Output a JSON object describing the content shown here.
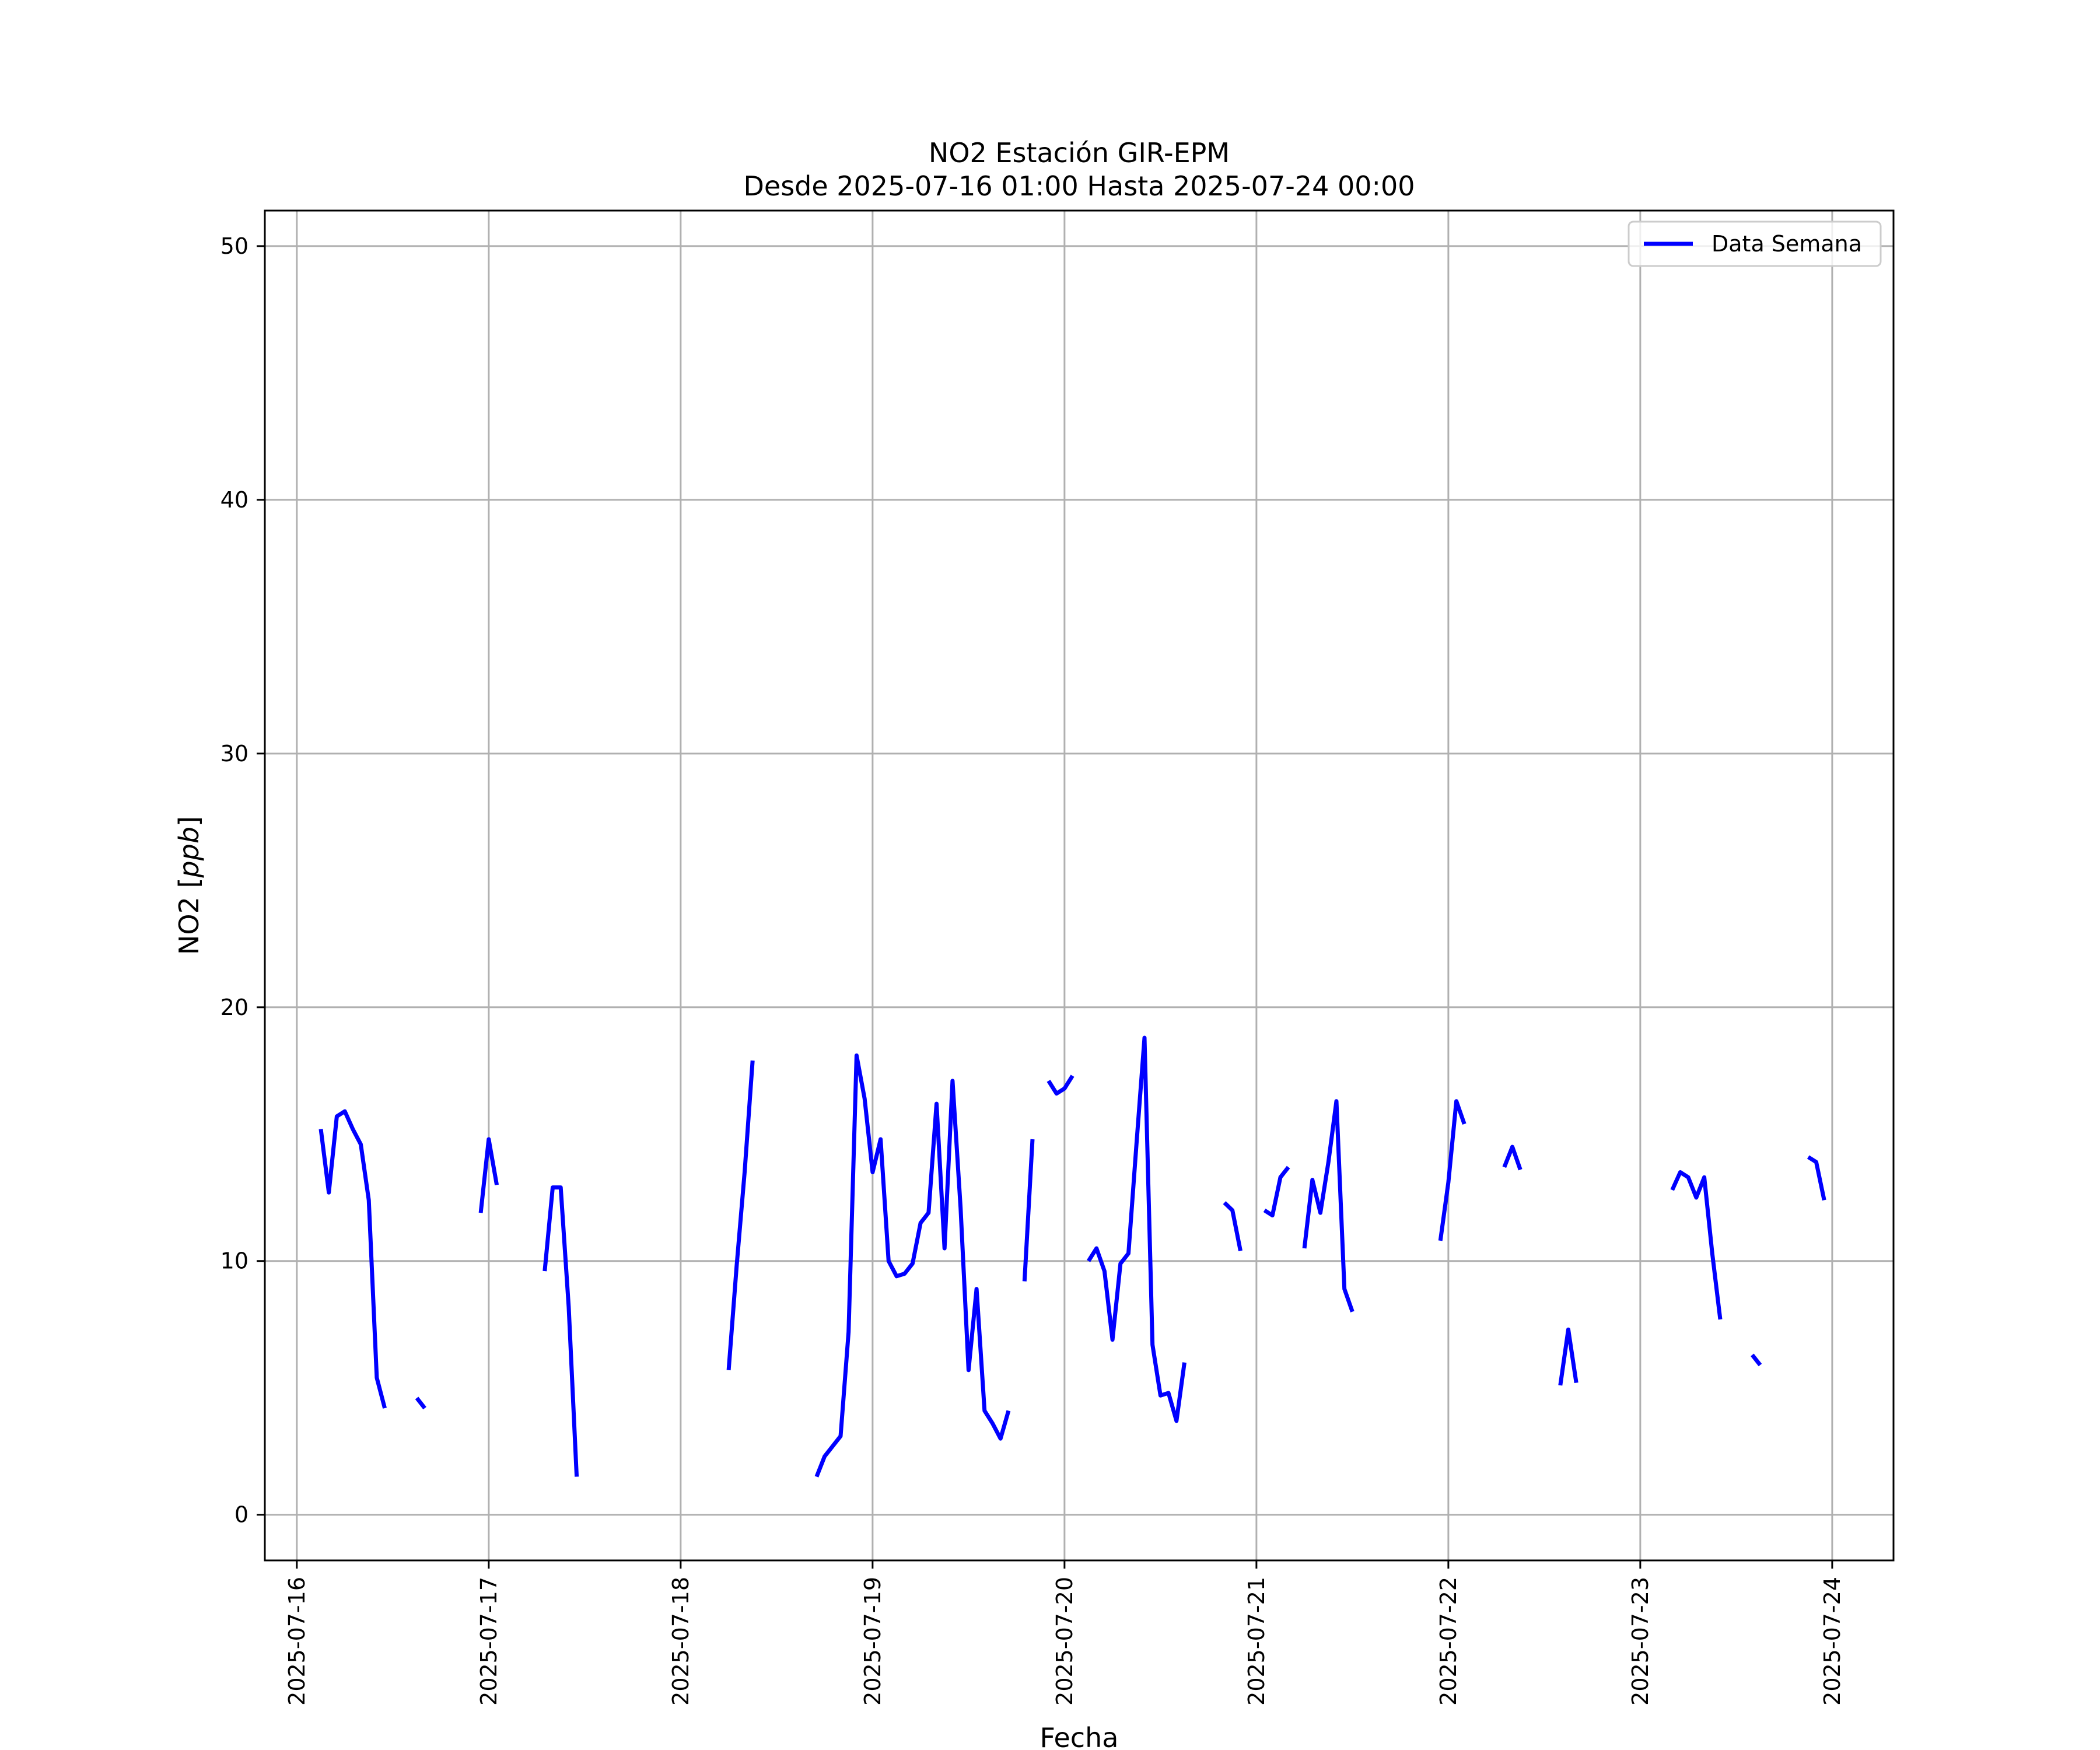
{
  "chart_data": {
    "type": "line",
    "title": "NO2 Estación GIR-EPM",
    "subtitle": "Desde 2025-07-16 01:00 Hasta 2025-07-24 00:00",
    "xlabel": "Fecha",
    "ylabel_main": "NO2 [",
    "ylabel_italic": "ppb",
    "ylabel_end": "]",
    "x_type": "date",
    "xlim": [
      "2025-07-15T20:00",
      "2025-07-24T07:40"
    ],
    "ylim": [
      -1.8,
      51.4
    ],
    "x_ticks": [
      "2025-07-16",
      "2025-07-17",
      "2025-07-18",
      "2025-07-19",
      "2025-07-20",
      "2025-07-21",
      "2025-07-22",
      "2025-07-23",
      "2025-07-24"
    ],
    "y_ticks": [
      0,
      10,
      20,
      30,
      40,
      50
    ],
    "grid": true,
    "legend_position": "top-right",
    "color": "#0000ff",
    "series": [
      {
        "name": "Data Semana",
        "segments": [
          [
            [
              "2025-07-16T03:00",
              15.2
            ],
            [
              "2025-07-16T04:00",
              12.7
            ],
            [
              "2025-07-16T05:00",
              15.7
            ],
            [
              "2025-07-16T06:00",
              15.9
            ],
            [
              "2025-07-16T07:00",
              15.2
            ],
            [
              "2025-07-16T08:00",
              14.6
            ],
            [
              "2025-07-16T09:00",
              12.4
            ],
            [
              "2025-07-16T10:00",
              5.4
            ],
            [
              "2025-07-16T11:00",
              4.2
            ]
          ],
          [
            [
              "2025-07-16T15:00",
              4.6
            ],
            [
              "2025-07-16T16:00",
              4.2
            ]
          ],
          [
            [
              "2025-07-16T23:00",
              11.9
            ],
            [
              "2025-07-17T00:00",
              14.8
            ],
            [
              "2025-07-17T01:00",
              13.0
            ]
          ],
          [
            [
              "2025-07-17T07:00",
              9.6
            ],
            [
              "2025-07-17T08:00",
              12.9
            ],
            [
              "2025-07-17T09:00",
              12.9
            ],
            [
              "2025-07-17T10:00",
              8.2
            ],
            [
              "2025-07-17T11:00",
              1.5
            ]
          ],
          [
            [
              "2025-07-18T06:00",
              5.7
            ],
            [
              "2025-07-18T07:00",
              9.8
            ],
            [
              "2025-07-18T08:00",
              13.5
            ],
            [
              "2025-07-18T09:00",
              17.9
            ]
          ],
          [
            [
              "2025-07-18T17:00",
              1.5
            ],
            [
              "2025-07-18T18:00",
              2.3
            ],
            [
              "2025-07-18T19:00",
              2.7
            ],
            [
              "2025-07-18T20:00",
              3.1
            ],
            [
              "2025-07-18T21:00",
              7.2
            ],
            [
              "2025-07-18T22:00",
              18.1
            ],
            [
              "2025-07-18T23:00",
              16.4
            ],
            [
              "2025-07-19T00:00",
              13.5
            ],
            [
              "2025-07-19T01:00",
              14.8
            ],
            [
              "2025-07-19T02:00",
              10.0
            ],
            [
              "2025-07-19T03:00",
              9.4
            ],
            [
              "2025-07-19T04:00",
              9.5
            ],
            [
              "2025-07-19T05:00",
              9.9
            ],
            [
              "2025-07-19T06:00",
              11.5
            ],
            [
              "2025-07-19T07:00",
              11.9
            ],
            [
              "2025-07-19T08:00",
              16.2
            ],
            [
              "2025-07-19T09:00",
              10.5
            ],
            [
              "2025-07-19T10:00",
              17.1
            ],
            [
              "2025-07-19T11:00",
              12.1
            ],
            [
              "2025-07-19T12:00",
              5.7
            ],
            [
              "2025-07-19T13:00",
              8.9
            ],
            [
              "2025-07-19T14:00",
              4.1
            ],
            [
              "2025-07-19T15:00",
              3.6
            ],
            [
              "2025-07-19T16:00",
              3.0
            ],
            [
              "2025-07-19T17:00",
              4.1
            ]
          ],
          [
            [
              "2025-07-19T19:00",
              9.2
            ],
            [
              "2025-07-19T20:00",
              14.8
            ]
          ],
          [
            [
              "2025-07-19T22:00",
              17.1
            ],
            [
              "2025-07-19T23:00",
              16.6
            ],
            [
              "2025-07-20T00:00",
              16.8
            ],
            [
              "2025-07-20T01:00",
              17.3
            ]
          ],
          [
            [
              "2025-07-20T03:00",
              10.0
            ],
            [
              "2025-07-20T04:00",
              10.5
            ],
            [
              "2025-07-20T05:00",
              9.6
            ],
            [
              "2025-07-20T06:00",
              6.9
            ],
            [
              "2025-07-20T07:00",
              9.9
            ],
            [
              "2025-07-20T08:00",
              10.3
            ],
            [
              "2025-07-20T09:00",
              14.6
            ],
            [
              "2025-07-20T10:00",
              18.8
            ],
            [
              "2025-07-20T11:00",
              6.7
            ],
            [
              "2025-07-20T12:00",
              4.7
            ],
            [
              "2025-07-20T13:00",
              4.8
            ],
            [
              "2025-07-20T14:00",
              3.7
            ],
            [
              "2025-07-20T15:00",
              6.0
            ]
          ],
          [
            [
              "2025-07-20T20:00",
              12.3
            ],
            [
              "2025-07-20T21:00",
              12.0
            ],
            [
              "2025-07-20T22:00",
              10.4
            ]
          ],
          [
            [
              "2025-07-21T01:00",
              12.0
            ],
            [
              "2025-07-21T02:00",
              11.8
            ],
            [
              "2025-07-21T03:00",
              13.3
            ],
            [
              "2025-07-21T04:00",
              13.7
            ]
          ],
          [
            [
              "2025-07-21T06:00",
              10.5
            ],
            [
              "2025-07-21T07:00",
              13.2
            ],
            [
              "2025-07-21T08:00",
              11.9
            ],
            [
              "2025-07-21T09:00",
              13.9
            ],
            [
              "2025-07-21T10:00",
              16.3
            ],
            [
              "2025-07-21T11:00",
              8.9
            ],
            [
              "2025-07-21T12:00",
              8.0
            ]
          ],
          [
            [
              "2025-07-21T23:00",
              10.8
            ],
            [
              "2025-07-22T00:00",
              13.1
            ],
            [
              "2025-07-22T01:00",
              16.3
            ],
            [
              "2025-07-22T02:00",
              15.4
            ]
          ],
          [
            [
              "2025-07-22T07:00",
              13.7
            ],
            [
              "2025-07-22T08:00",
              14.5
            ],
            [
              "2025-07-22T09:00",
              13.6
            ]
          ],
          [
            [
              "2025-07-22T14:00",
              5.1
            ],
            [
              "2025-07-22T15:00",
              7.3
            ],
            [
              "2025-07-22T16:00",
              5.2
            ]
          ],
          [
            [
              "2025-07-23T04:00",
              12.8
            ],
            [
              "2025-07-23T05:00",
              13.5
            ],
            [
              "2025-07-23T06:00",
              13.3
            ],
            [
              "2025-07-23T07:00",
              12.5
            ],
            [
              "2025-07-23T08:00",
              13.3
            ],
            [
              "2025-07-23T09:00",
              10.3
            ],
            [
              "2025-07-23T10:00",
              7.7
            ]
          ],
          [
            [
              "2025-07-23T14:00",
              6.3
            ],
            [
              "2025-07-23T15:00",
              5.9
            ]
          ],
          [
            [
              "2025-07-23T21:00",
              14.1
            ],
            [
              "2025-07-23T22:00",
              13.9
            ],
            [
              "2025-07-23T23:00",
              12.4
            ]
          ]
        ]
      }
    ]
  }
}
